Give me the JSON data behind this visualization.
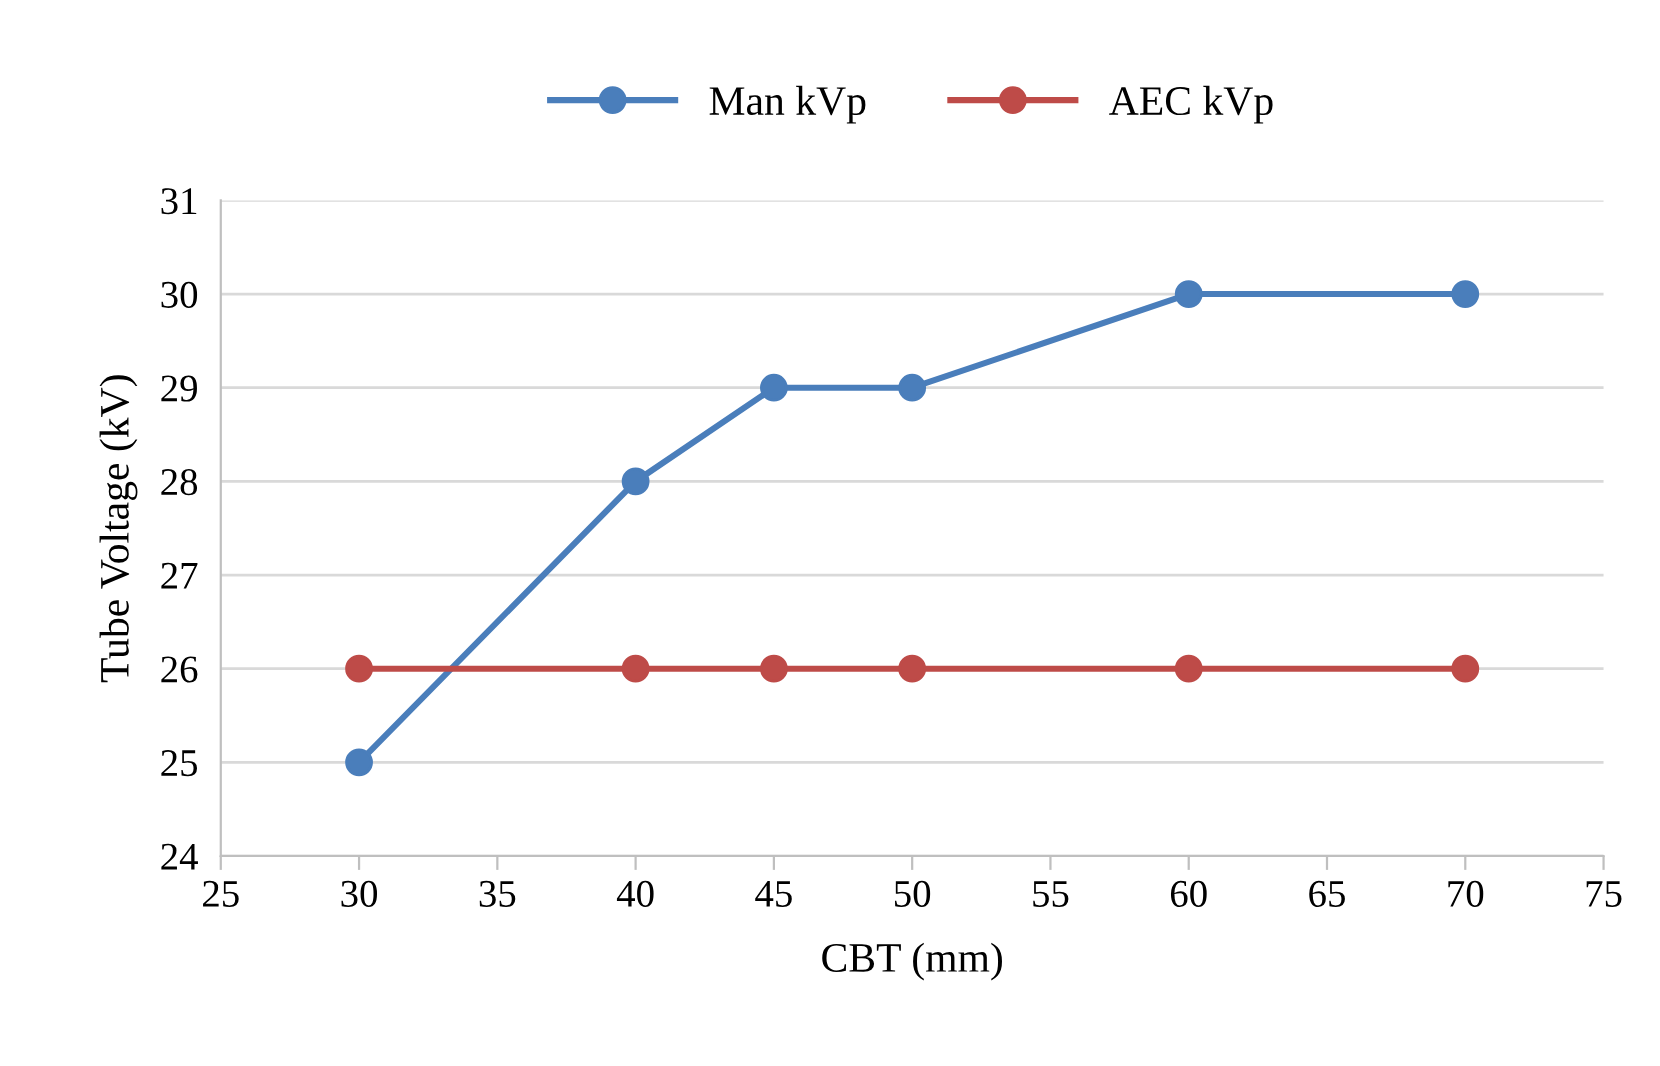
{
  "chart_data": {
    "type": "line",
    "xlabel": "CBT (mm)",
    "ylabel": "Tube Voltage (kV)",
    "x": [
      30,
      40,
      45,
      50,
      60,
      70
    ],
    "series": [
      {
        "name": "Man kVp",
        "color": "#4a7ebb",
        "values": [
          25,
          28,
          29,
          29,
          30,
          30
        ]
      },
      {
        "name": "AEC kVp",
        "color": "#be4b48",
        "values": [
          26,
          26,
          26,
          26,
          26,
          26
        ]
      }
    ],
    "xlim": [
      25,
      75
    ],
    "xticks": [
      25,
      30,
      35,
      40,
      45,
      50,
      55,
      60,
      65,
      70,
      75
    ],
    "ylim": [
      24,
      31
    ],
    "yticks": [
      24,
      25,
      26,
      27,
      28,
      29,
      30,
      31
    ],
    "grid": "y",
    "legend": "top",
    "marker": "circle",
    "line_style": "solid"
  }
}
